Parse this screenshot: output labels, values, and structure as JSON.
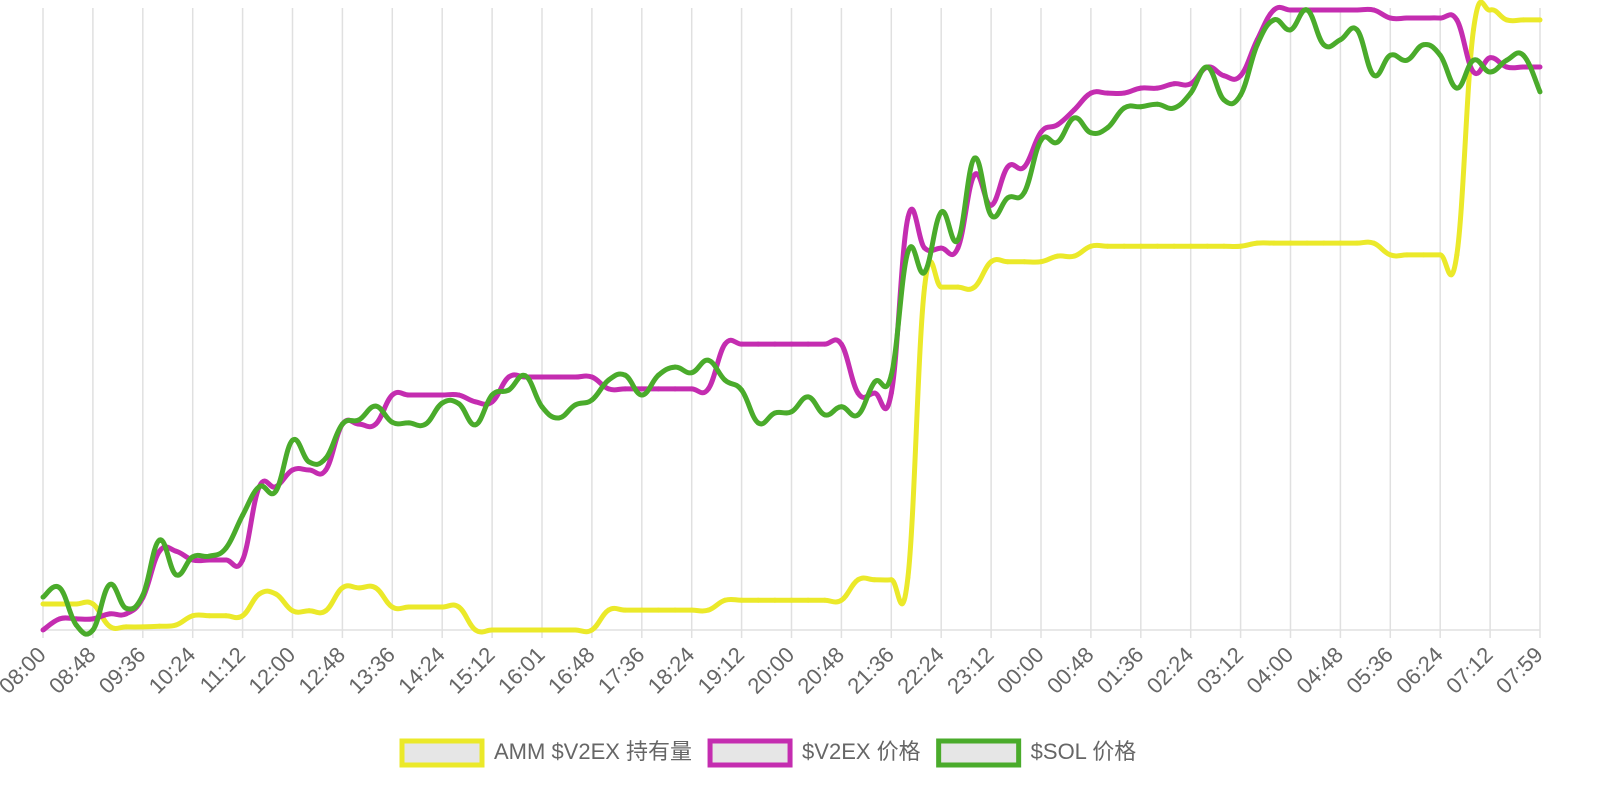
{
  "chart_data": {
    "type": "line",
    "categories": [
      "08:00",
      null,
      null,
      "08:48",
      null,
      null,
      "09:36",
      null,
      null,
      "10:24",
      null,
      null,
      "11:12",
      null,
      null,
      "12:00",
      null,
      null,
      "12:48",
      null,
      null,
      "13:36",
      null,
      null,
      "14:24",
      null,
      null,
      "15:12",
      null,
      null,
      "16:01",
      null,
      null,
      "16:48",
      null,
      null,
      "17:36",
      null,
      null,
      "18:24",
      null,
      null,
      "19:12",
      null,
      null,
      "20:00",
      null,
      null,
      "20:48",
      null,
      null,
      "21:36",
      null,
      null,
      "22:24",
      null,
      null,
      "23:12",
      null,
      null,
      "00:00",
      null,
      null,
      "00:48",
      null,
      null,
      "01:36",
      null,
      null,
      "02:24",
      null,
      null,
      "03:12",
      null,
      null,
      "04:00",
      null,
      null,
      "04:48",
      null,
      null,
      "05:36",
      null,
      null,
      "06:24",
      null,
      null,
      "07:12",
      null,
      null,
      "07:59"
    ],
    "series": [
      {
        "name": "AMM $V2EX 持有量",
        "color": "#ebe92a",
        "values": [
          4.2,
          4.2,
          4.2,
          4.2,
          0.6,
          0.5,
          0.5,
          0.6,
          0.8,
          2.3,
          2.3,
          2.3,
          2.3,
          5.8,
          5.8,
          3.1,
          3.1,
          3.1,
          6.8,
          6.8,
          6.8,
          3.7,
          3.7,
          3.7,
          3.7,
          3.7,
          0,
          0,
          0,
          0,
          0,
          0,
          0,
          0,
          3.2,
          3.2,
          3.2,
          3.2,
          3.2,
          3.2,
          3.2,
          4.8,
          4.8,
          4.8,
          4.8,
          4.8,
          4.8,
          4.8,
          4.8,
          8.1,
          8.1,
          8.1,
          8.5,
          55.3,
          55.3,
          55.3,
          55.3,
          59.4,
          59.4,
          59.4,
          59.4,
          60.3,
          60.3,
          61.9,
          61.9,
          61.9,
          61.9,
          61.9,
          61.9,
          61.9,
          61.9,
          61.9,
          61.9,
          62.4,
          62.4,
          62.4,
          62.4,
          62.4,
          62.4,
          62.4,
          62.4,
          60.5,
          60.5,
          60.5,
          60.5,
          60.5,
          96.8,
          100,
          98.4,
          98.4,
          98.4
        ]
      },
      {
        "name": "$V2EX 价格",
        "color": "#c42db0",
        "values": [
          0,
          1.8,
          1.8,
          1.8,
          2.6,
          2.6,
          5.2,
          12.7,
          12.7,
          11.3,
          11.3,
          11.3,
          11.3,
          23.1,
          23.1,
          25.8,
          25.8,
          25.8,
          33.2,
          33.2,
          33.2,
          37.9,
          37.9,
          37.9,
          37.9,
          37.9,
          36.8,
          36.8,
          40.8,
          40.8,
          40.8,
          40.8,
          40.8,
          40.8,
          38.9,
          38.9,
          38.9,
          38.9,
          38.9,
          38.9,
          38.9,
          46.1,
          46.1,
          46.1,
          46.1,
          46.1,
          46.1,
          46.1,
          46.1,
          38.2,
          38.2,
          38.2,
          66.5,
          61.6,
          61.6,
          61.6,
          73.4,
          68.5,
          74.7,
          74.7,
          80.3,
          81.5,
          83.9,
          86.6,
          86.6,
          86.6,
          87.4,
          87.4,
          88.1,
          88.1,
          90.8,
          89.4,
          89.4,
          95.2,
          100,
          100,
          100,
          100,
          100,
          100,
          100,
          98.7,
          98.7,
          98.7,
          98.7,
          98.4,
          90,
          92.3,
          90.8,
          90.8,
          90.8
        ]
      },
      {
        "name": "$SOL 价格",
        "color": "#4aab2b",
        "values": [
          5.3,
          6.8,
          0.8,
          0,
          7.3,
          3.5,
          5.6,
          14.5,
          8.9,
          11.8,
          11.9,
          13.2,
          18.5,
          23.1,
          22.4,
          30.6,
          27.1,
          27.7,
          33.2,
          33.9,
          36.1,
          33.5,
          33.4,
          33.2,
          36.6,
          36.5,
          33.1,
          37.9,
          38.7,
          41,
          36,
          34.2,
          36.3,
          37.1,
          40.3,
          41.1,
          37.9,
          41.1,
          42.4,
          41.5,
          43.5,
          40.3,
          38.7,
          33.4,
          35,
          35.2,
          37.6,
          34.7,
          36,
          34.7,
          40,
          41.1,
          61,
          57.7,
          67.4,
          62.9,
          76.1,
          66.9,
          69.7,
          70.6,
          79,
          78.7,
          82.6,
          80.2,
          81,
          84.2,
          84.4,
          84.8,
          84.2,
          86.6,
          90.8,
          85.5,
          86.3,
          94.4,
          98.4,
          96.8,
          100,
          94.4,
          95.2,
          96.8,
          89.5,
          92.7,
          91.9,
          94.4,
          92.7,
          87.4,
          91.9,
          90,
          91.9,
          92.7,
          86.8
        ]
      }
    ],
    "ylim": [
      0,
      100
    ],
    "grid": true,
    "legend": "bottom"
  }
}
